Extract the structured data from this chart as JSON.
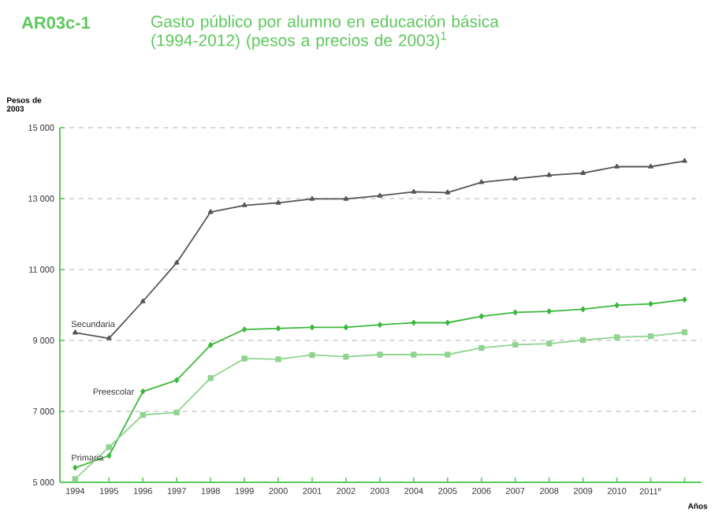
{
  "chart_data": {
    "type": "line",
    "title": "Gasto público por alumno en educación básica (1994-2012) (pesos a precios de 2003)$^{1}$",
    "annotations": [
      "AR03c-1"
    ],
    "xlabel": "Años",
    "ylabel": "Pesos de 2003",
    "categories": [
      "1994",
      "1995",
      "1996",
      "1997",
      "1998",
      "1999",
      "2000",
      "2001",
      "2002",
      "2003",
      "2004",
      "2005",
      "2006",
      "2007",
      "2008",
      "2009",
      "2010",
      "2011$^{e}$",
      null
    ],
    "series": [
      {
        "name": "Secundaria",
        "color": "#555555",
        "marker": "triangle",
        "values": [
          9220,
          9060,
          10100,
          11190,
          12620,
          12810,
          12880,
          12990,
          12990,
          13080,
          13190,
          13170,
          13460,
          13560,
          13660,
          13720,
          13900,
          13900,
          14060
        ]
      },
      {
        "name": "Preescolar",
        "color": "#3cb83c",
        "marker": "diamond",
        "values": [
          5410,
          5750,
          7560,
          7880,
          8870,
          9310,
          9340,
          9370,
          9370,
          9440,
          9500,
          9500,
          9680,
          9790,
          9820,
          9880,
          9990,
          10030,
          10150
        ]
      },
      {
        "name": "Primaria",
        "color": "#8fd48f",
        "marker": "square",
        "values": [
          5090,
          5990,
          6900,
          6970,
          7940,
          8490,
          8470,
          8590,
          8540,
          8600,
          8600,
          8600,
          8790,
          8880,
          8910,
          9010,
          9090,
          9120,
          9230
        ]
      }
    ],
    "ylim": [
      5000,
      15000
    ],
    "yticks": [
      {
        "value": 5000,
        "label": "5 000"
      },
      {
        "value": 7000,
        "label": "7 000"
      },
      {
        "value": 9000,
        "label": "9 000"
      },
      {
        "value": 11000,
        "label": "11 000"
      },
      {
        "value": 13000,
        "label": "13 000"
      },
      {
        "value": 15000,
        "label": "15 000"
      }
    ],
    "grid": "y",
    "legend": false,
    "line_style": "solid"
  }
}
